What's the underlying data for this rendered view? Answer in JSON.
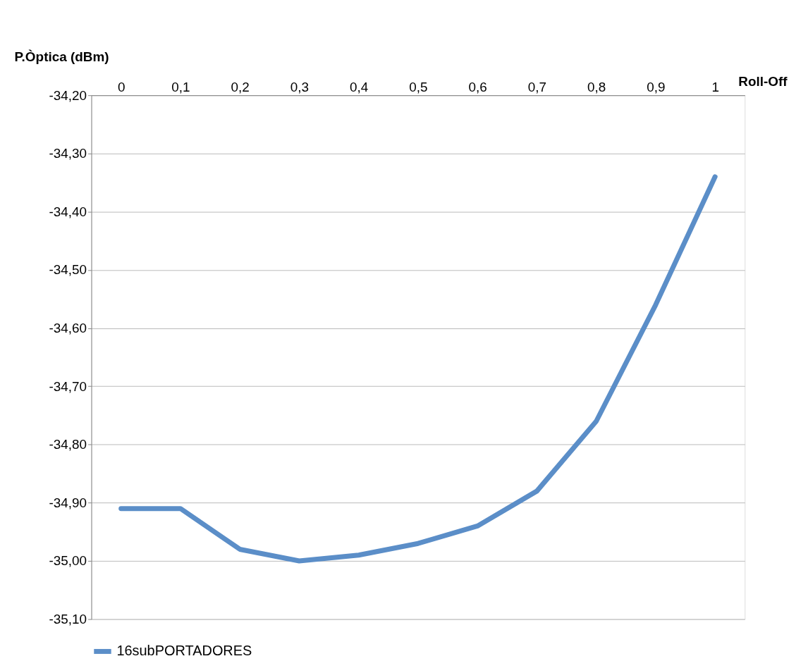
{
  "chart_data": {
    "type": "line",
    "xlabel": "Roll-Off",
    "ylabel": "P.Òptica (dBm)",
    "categories": [
      "0",
      "0,1",
      "0,2",
      "0,3",
      "0,4",
      "0,5",
      "0,6",
      "0,7",
      "0,8",
      "0,9",
      "1"
    ],
    "series": [
      {
        "name": "16subPORTADORES",
        "color": "#5b8ec8",
        "values": [
          -34.91,
          -34.91,
          -34.98,
          -35.0,
          -34.99,
          -34.97,
          -34.94,
          -34.88,
          -34.76,
          -34.56,
          -34.34
        ]
      }
    ],
    "ylim": [
      -35.1,
      -34.2
    ],
    "yticks": [
      {
        "value": -35.1,
        "label": "-35,10"
      },
      {
        "value": -35.0,
        "label": "-35,00"
      },
      {
        "value": -34.9,
        "label": "-34,90"
      },
      {
        "value": -34.8,
        "label": "-34,80"
      },
      {
        "value": -34.7,
        "label": "-34,70"
      },
      {
        "value": -34.6,
        "label": "-34,60"
      },
      {
        "value": -34.5,
        "label": "-34,50"
      },
      {
        "value": -34.4,
        "label": "-34,40"
      },
      {
        "value": -34.3,
        "label": "-34,30"
      },
      {
        "value": -34.2,
        "label": "-34,20"
      }
    ],
    "grid": "y",
    "legend": "bottom",
    "marker": "none",
    "line_style": "solid"
  }
}
